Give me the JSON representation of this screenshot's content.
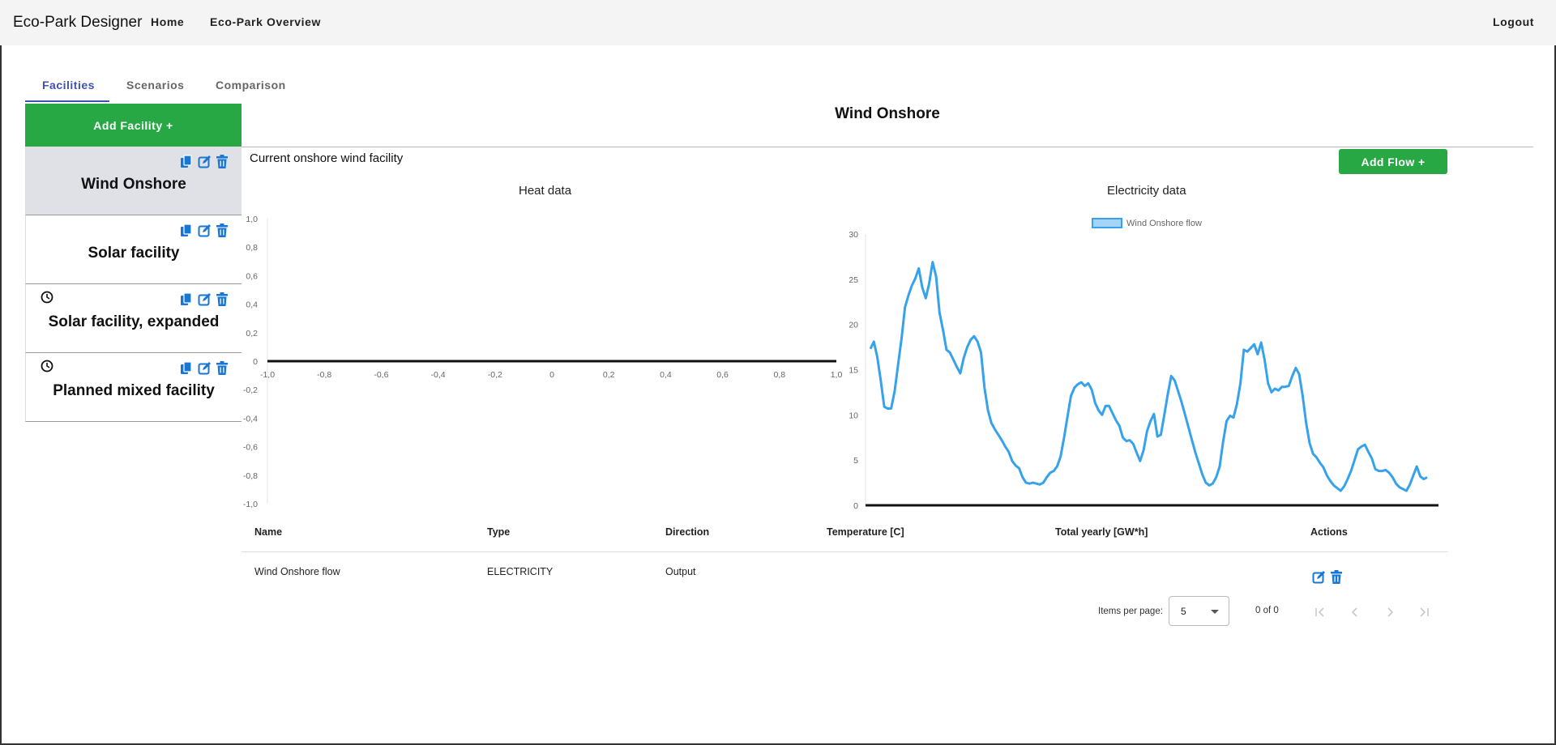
{
  "app": {
    "brand": "Eco-Park Designer",
    "nav": {
      "home": "Home",
      "overview": "Eco-Park Overview",
      "logout": "Logout"
    }
  },
  "tabs": [
    {
      "label": "Facilities",
      "active": true
    },
    {
      "label": "Scenarios",
      "active": false
    },
    {
      "label": "Comparison",
      "active": false
    }
  ],
  "sidebar": {
    "add_label": "Add Facility +",
    "items": [
      {
        "name": "Wind Onshore",
        "selected": true,
        "clock": false
      },
      {
        "name": "Solar facility",
        "selected": false,
        "clock": false
      },
      {
        "name": "Solar facility, expanded",
        "selected": false,
        "clock": true
      },
      {
        "name": "Planned mixed facility",
        "selected": false,
        "clock": true
      }
    ]
  },
  "main": {
    "title": "Wind Onshore",
    "subtitle": "Current onshore wind facility",
    "add_flow_label": "Add Flow +"
  },
  "colors": {
    "accent": "#3f51b5",
    "green": "#28a745",
    "icon_blue": "#1976d2",
    "line": "#36a2eb"
  },
  "chart_data": [
    {
      "type": "line",
      "title": "Heat data",
      "series": [],
      "xlim": [
        -1,
        1
      ],
      "ylim": [
        -1,
        1
      ],
      "x_ticks": [
        "-1,0",
        "-0,8",
        "-0,6",
        "-0,4",
        "-0,2",
        "0",
        "0,2",
        "0,4",
        "0,6",
        "0,8",
        "1,0"
      ],
      "y_ticks": [
        "1,0",
        "0,8",
        "0,6",
        "0,4",
        "0,2",
        "0",
        "-0,2",
        "-0,4",
        "-0,6",
        "-0,8",
        "-1,0"
      ]
    },
    {
      "type": "line",
      "title": "Electricity data",
      "ylim": [
        0,
        30
      ],
      "y_ticks": [
        "30",
        "25",
        "20",
        "15",
        "10",
        "5",
        "0"
      ],
      "legend": "top",
      "series": [
        {
          "name": "Wind Onshore flow",
          "values": [
            17.3,
            18.1,
            16.4,
            13.8,
            10.9,
            10.7,
            10.7,
            12.6,
            15.5,
            18.4,
            21.9,
            23.2,
            24.3,
            25.1,
            26.2,
            24.1,
            22.9,
            24.5,
            26.9,
            25.3,
            21.3,
            19.4,
            17.2,
            16.9,
            16.1,
            15.3,
            14.6,
            16.3,
            17.5,
            18.3,
            18.7,
            18.1,
            16.9,
            13.0,
            10.5,
            9.1,
            8.4,
            7.8,
            7.2,
            6.5,
            5.9,
            4.9,
            4.4,
            4.1,
            3.1,
            2.5,
            2.4,
            2.5,
            2.4,
            2.3,
            2.5,
            3.1,
            3.6,
            3.8,
            4.3,
            5.4,
            7.5,
            9.8,
            12.1,
            13.0,
            13.4,
            13.6,
            13.2,
            13.5,
            12.8,
            11.3,
            10.5,
            10.0,
            11.0,
            11.0,
            10.2,
            9.4,
            8.8,
            7.5,
            7.1,
            7.2,
            6.8,
            5.8,
            4.9,
            6.1,
            8.2,
            9.3,
            10.1,
            7.6,
            7.8,
            10.0,
            12.3,
            14.3,
            13.8,
            12.6,
            11.4,
            10.0,
            8.6,
            7.2,
            5.8,
            4.6,
            3.4,
            2.5,
            2.2,
            2.4,
            3.1,
            4.3,
            7.0,
            9.3,
            9.9,
            9.7,
            11.2,
            13.5,
            17.2,
            17.0,
            17.4,
            17.8,
            16.7,
            18.0,
            16.1,
            13.5,
            12.5,
            12.9,
            12.7,
            13.1,
            13.1,
            13.2,
            14.3,
            15.2,
            14.5,
            12.1,
            9.1,
            6.9,
            5.7,
            5.3,
            4.7,
            4.2,
            3.3,
            2.7,
            2.2,
            1.9,
            1.6,
            2.1,
            2.9,
            3.8,
            5.0,
            6.2,
            6.5,
            6.7,
            5.9,
            5.2,
            4.0,
            3.8,
            3.8,
            3.9,
            3.6,
            3.1,
            2.4,
            2.0,
            1.8,
            1.6,
            2.3,
            3.3,
            4.3,
            3.2,
            2.9,
            3.1
          ]
        }
      ]
    }
  ],
  "table": {
    "columns": [
      "Name",
      "Type",
      "Direction",
      "Temperature [C]",
      "Total yearly [GW*h]",
      "Actions"
    ],
    "rows": [
      {
        "name": "Wind Onshore flow",
        "type": "ELECTRICITY",
        "direction": "Output",
        "temperature": "",
        "total": ""
      }
    ]
  },
  "paginator": {
    "label": "Items per page:",
    "page_size": "5",
    "range": "0 of 0"
  }
}
